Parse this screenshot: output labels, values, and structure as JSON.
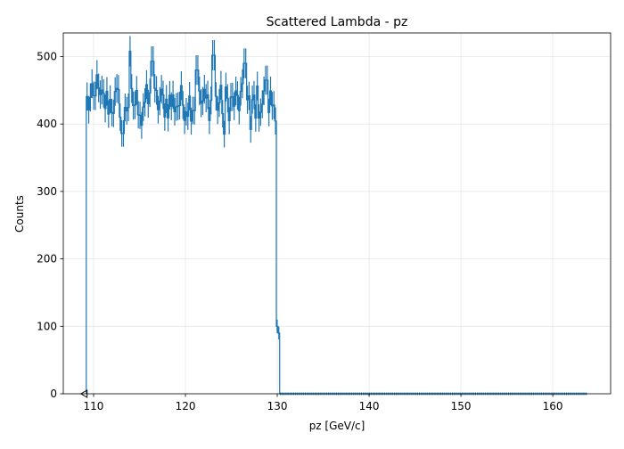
{
  "chart_data": {
    "type": "histogram-step",
    "title": "Scattered Lambda - pz",
    "xlabel": "pz [GeV/c]",
    "ylabel": "Counts",
    "xlim": [
      106.7,
      166.3
    ],
    "ylim": [
      0,
      535
    ],
    "xticks": [
      110,
      120,
      130,
      140,
      150,
      160
    ],
    "yticks": [
      0,
      100,
      200,
      300,
      400,
      500
    ],
    "grid": true,
    "series_color": "#1f77b4",
    "bin_range": [
      109.2,
      163.7
    ],
    "bin_width": 0.18,
    "plateau": {
      "x_range": [
        109.2,
        129.9
      ],
      "min_count": 385,
      "max_count": 508,
      "typical_count": 432,
      "peaks": [
        {
          "x": 114.0,
          "count": 508
        },
        {
          "x": 123.1,
          "count": 502
        },
        {
          "x": 110.4,
          "count": 473
        },
        {
          "x": 116.4,
          "count": 493
        },
        {
          "x": 121.3,
          "count": 480
        },
        {
          "x": 126.5,
          "count": 490
        },
        {
          "x": 128.8,
          "count": 465
        }
      ],
      "dips": [
        {
          "x": 113.2,
          "count": 386
        },
        {
          "x": 124.2,
          "count": 385
        },
        {
          "x": 127.1,
          "count": 392
        },
        {
          "x": 115.2,
          "count": 398
        }
      ]
    },
    "edge_bins": [
      {
        "x": 130.0,
        "count": 100
      },
      {
        "x": 130.2,
        "count": 90
      }
    ],
    "tail": {
      "x_range": [
        130.4,
        163.7
      ],
      "count": 0
    },
    "annotations": [
      {
        "type": "marker",
        "shape": "left-triangle",
        "x": 109.0,
        "y": 0
      }
    ]
  }
}
